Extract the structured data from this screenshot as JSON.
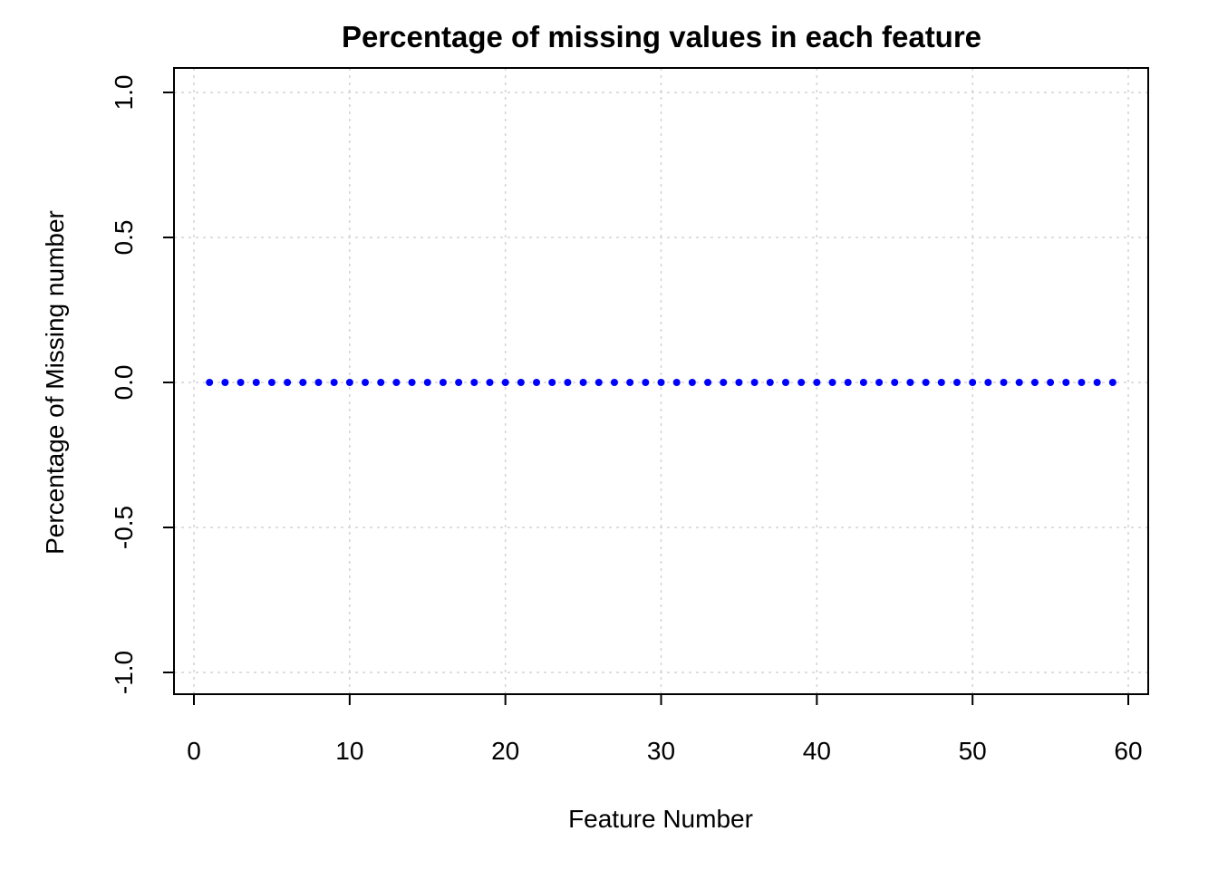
{
  "chart_data": {
    "type": "scatter",
    "title": "Percentage of missing values in each feature",
    "xlabel": "Feature Number",
    "ylabel": "Percentage of Missing number",
    "xlim": [
      0,
      60
    ],
    "ylim": [
      -1.0,
      1.0
    ],
    "x_ticks": [
      0,
      10,
      20,
      30,
      40,
      50,
      60
    ],
    "x_tick_labels": [
      "0",
      "10",
      "20",
      "30",
      "40",
      "50",
      "60"
    ],
    "y_ticks": [
      -1.0,
      -0.5,
      0.0,
      0.5,
      1.0
    ],
    "y_tick_labels": [
      "-1.0",
      "-0.5",
      "0.0",
      "0.5",
      "1.0"
    ],
    "grid": true,
    "point_color": "#0000ff",
    "x": [
      1,
      2,
      3,
      4,
      5,
      6,
      7,
      8,
      9,
      10,
      11,
      12,
      13,
      14,
      15,
      16,
      17,
      18,
      19,
      20,
      21,
      22,
      23,
      24,
      25,
      26,
      27,
      28,
      29,
      30,
      31,
      32,
      33,
      34,
      35,
      36,
      37,
      38,
      39,
      40,
      41,
      42,
      43,
      44,
      45,
      46,
      47,
      48,
      49,
      50,
      51,
      52,
      53,
      54,
      55,
      56,
      57,
      58,
      59
    ],
    "y": [
      0,
      0,
      0,
      0,
      0,
      0,
      0,
      0,
      0,
      0,
      0,
      0,
      0,
      0,
      0,
      0,
      0,
      0,
      0,
      0,
      0,
      0,
      0,
      0,
      0,
      0,
      0,
      0,
      0,
      0,
      0,
      0,
      0,
      0,
      0,
      0,
      0,
      0,
      0,
      0,
      0,
      0,
      0,
      0,
      0,
      0,
      0,
      0,
      0,
      0,
      0,
      0,
      0,
      0,
      0,
      0,
      0,
      0,
      0
    ]
  }
}
